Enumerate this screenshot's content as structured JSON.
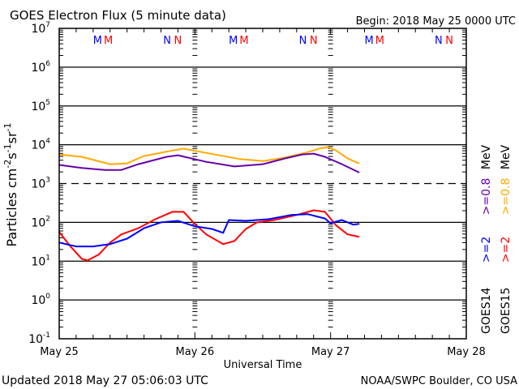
{
  "chart_data": {
    "type": "line",
    "title": "GOES Electron Flux (5 minute data)",
    "begin_label": "Begin: 2018 May 25 0000 UTC",
    "xlabel": "Universal Time",
    "ylabel": "Particles cm",
    "ylabel_units": [
      "-2",
      "s",
      "-1",
      "sr",
      "-1"
    ],
    "y_scale": "log",
    "ylim_log10": [
      -1,
      7
    ],
    "y_ticks": [
      {
        "base": "10",
        "exp": "7",
        "log": 7
      },
      {
        "base": "10",
        "exp": "6",
        "log": 6
      },
      {
        "base": "10",
        "exp": "5",
        "log": 5
      },
      {
        "base": "10",
        "exp": "4",
        "log": 4
      },
      {
        "base": "10",
        "exp": "3",
        "log": 3
      },
      {
        "base": "10",
        "exp": "2",
        "log": 2
      },
      {
        "base": "10",
        "exp": "1",
        "log": 1
      },
      {
        "base": "10",
        "exp": "0",
        "log": 0
      },
      {
        "base": "10",
        "exp": "-1",
        "log": -1
      }
    ],
    "threshold_log10": 3,
    "xlim_hours": [
      0,
      72
    ],
    "x_ticks": [
      {
        "label": "May 25",
        "hour": 0
      },
      {
        "label": "May 26",
        "hour": 24
      },
      {
        "label": "May 27",
        "hour": 48
      },
      {
        "label": "May 28",
        "hour": 72
      }
    ],
    "markers": [
      {
        "text": "M",
        "hour": 6.8,
        "color": "#0000ff"
      },
      {
        "text": "M",
        "hour": 8.7,
        "color": "#ff0000"
      },
      {
        "text": "N",
        "hour": 19.1,
        "color": "#0000ff"
      },
      {
        "text": "N",
        "hour": 21.0,
        "color": "#ff0000"
      },
      {
        "text": "M",
        "hour": 30.8,
        "color": "#0000ff"
      },
      {
        "text": "M",
        "hour": 32.7,
        "color": "#ff0000"
      },
      {
        "text": "N",
        "hour": 43.1,
        "color": "#0000ff"
      },
      {
        "text": "N",
        "hour": 45.0,
        "color": "#ff0000"
      },
      {
        "text": "M",
        "hour": 54.8,
        "color": "#0000ff"
      },
      {
        "text": "M",
        "hour": 56.7,
        "color": "#ff0000"
      },
      {
        "text": "N",
        "hour": 67.1,
        "color": "#0000ff"
      },
      {
        "text": "N",
        "hour": 69.0,
        "color": "#ff0000"
      }
    ],
    "legend": [
      {
        "sat": "GOES14",
        "energies": [
          {
            "text": ">=2",
            "color": "#0000ff"
          },
          {
            "text": ">=0.8",
            "color": "#6600aa"
          }
        ],
        "unit": "MeV"
      },
      {
        "sat": "GOES15",
        "energies": [
          {
            "text": ">=2",
            "color": "#ff0000"
          },
          {
            "text": ">=0.8",
            "color": "#ffaa00"
          }
        ],
        "unit": "MeV"
      }
    ],
    "series": [
      {
        "name": "GOES15 >=0.8 MeV",
        "color": "#ffaa00",
        "hours": [
          0,
          4,
          9,
          12,
          15,
          20,
          22,
          26,
          32,
          36,
          40,
          44,
          46,
          47.5,
          49,
          51,
          53
        ],
        "log10_flux": [
          3.75,
          3.69,
          3.5,
          3.52,
          3.71,
          3.85,
          3.9,
          3.79,
          3.63,
          3.58,
          3.67,
          3.81,
          3.9,
          3.94,
          3.85,
          3.65,
          3.52
        ]
      },
      {
        "name": "GOES14 >=0.8 MeV",
        "color": "#6600aa",
        "hours": [
          0,
          4,
          8,
          11,
          14,
          19,
          21,
          26,
          31,
          36,
          40,
          43,
          45,
          47,
          50,
          53
        ],
        "log10_flux": [
          3.48,
          3.4,
          3.35,
          3.35,
          3.5,
          3.69,
          3.73,
          3.56,
          3.44,
          3.5,
          3.65,
          3.75,
          3.77,
          3.69,
          3.5,
          3.29
        ]
      },
      {
        "name": "GOES15 >=2 MeV",
        "color": "#ff0000",
        "hours": [
          0,
          2,
          4,
          5,
          7,
          9,
          11,
          14,
          17,
          20,
          22,
          24,
          26,
          29,
          31,
          33,
          35,
          38,
          42,
          45,
          47,
          49,
          51,
          53
        ],
        "log10_flux": [
          1.75,
          1.38,
          1.06,
          1.02,
          1.17,
          1.48,
          1.69,
          1.85,
          2.08,
          2.27,
          2.27,
          1.96,
          1.69,
          1.44,
          1.52,
          1.83,
          2.0,
          2.06,
          2.19,
          2.31,
          2.27,
          1.92,
          1.69,
          1.63
        ]
      },
      {
        "name": "GOES14 >=2 MeV",
        "color": "#0000ff",
        "hours": [
          0,
          3,
          6,
          9,
          12,
          15,
          18,
          21,
          24,
          27,
          29,
          30,
          33,
          37,
          41,
          44,
          47,
          48,
          50,
          52,
          53
        ],
        "log10_flux": [
          1.48,
          1.38,
          1.38,
          1.44,
          1.58,
          1.85,
          2.0,
          2.04,
          1.9,
          1.83,
          1.73,
          2.06,
          2.04,
          2.08,
          2.19,
          2.21,
          2.1,
          1.98,
          2.06,
          1.94,
          1.96
        ]
      }
    ]
  },
  "footer": {
    "updated": "Updated 2018 May 27 05:06:03 UTC",
    "credit": "NOAA/SWPC Boulder, CO USA"
  }
}
